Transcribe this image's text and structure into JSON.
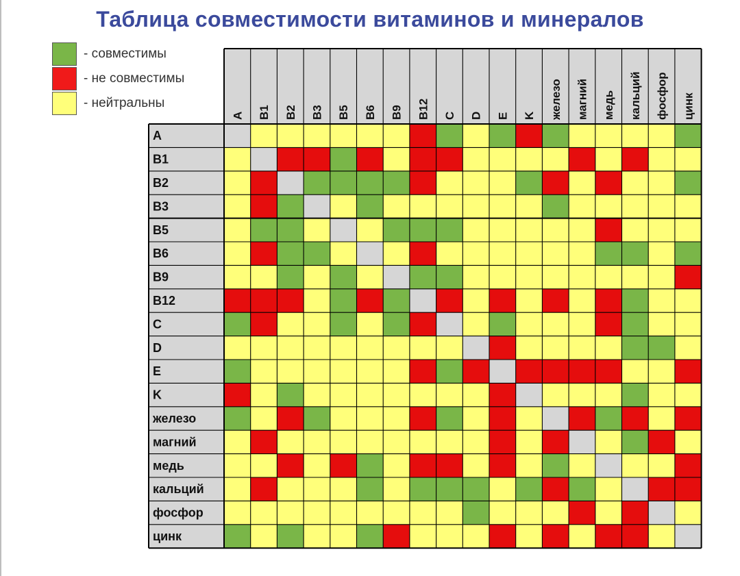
{
  "title": "Таблица совместимости витаминов и минералов",
  "legend": [
    {
      "label": "- совместимы",
      "color": "#7ab648"
    },
    {
      "label": "- не совместимы",
      "color": "#f01a1a"
    },
    {
      "label": "- нейтральны",
      "color": "#ffff7a"
    }
  ],
  "colors": {
    "G": "#7ab648",
    "R": "#e50d0d",
    "Y": "#ffff7a",
    "D": "#d6d6d6",
    "header_bg": "#d6d6d6",
    "line": "#000000"
  },
  "chart_data": {
    "type": "heatmap",
    "title": "Таблица совместимости витаминов и минералов",
    "columns": [
      "A",
      "B1",
      "B2",
      "B3",
      "B5",
      "B6",
      "B9",
      "B12",
      "C",
      "D",
      "E",
      "K",
      "железо",
      "магний",
      "медь",
      "кальций",
      "фосфор",
      "цинк"
    ],
    "rows": [
      "A",
      "B1",
      "B2",
      "B3",
      "B5",
      "B6",
      "B9",
      "B12",
      "C",
      "D",
      "E",
      "K",
      "железо",
      "магний",
      "медь",
      "кальций",
      "фосфор",
      "цинк"
    ],
    "values": [
      [
        "D",
        "Y",
        "Y",
        "Y",
        "Y",
        "Y",
        "Y",
        "R",
        "G",
        "Y",
        "G",
        "R",
        "G",
        "Y",
        "Y",
        "Y",
        "Y",
        "G"
      ],
      [
        "Y",
        "D",
        "R",
        "R",
        "G",
        "R",
        "Y",
        "R",
        "R",
        "Y",
        "Y",
        "Y",
        "Y",
        "R",
        "Y",
        "R",
        "Y",
        "Y"
      ],
      [
        "Y",
        "R",
        "D",
        "G",
        "G",
        "G",
        "G",
        "R",
        "Y",
        "Y",
        "Y",
        "G",
        "R",
        "Y",
        "R",
        "Y",
        "Y",
        "G"
      ],
      [
        "Y",
        "R",
        "G",
        "D",
        "Y",
        "G",
        "Y",
        "Y",
        "Y",
        "Y",
        "Y",
        "Y",
        "G",
        "Y",
        "Y",
        "Y",
        "Y",
        "Y"
      ],
      [
        "Y",
        "G",
        "G",
        "Y",
        "D",
        "Y",
        "G",
        "G",
        "G",
        "Y",
        "Y",
        "Y",
        "Y",
        "Y",
        "R",
        "Y",
        "Y",
        "Y"
      ],
      [
        "Y",
        "R",
        "G",
        "G",
        "Y",
        "D",
        "Y",
        "R",
        "Y",
        "Y",
        "Y",
        "Y",
        "Y",
        "Y",
        "G",
        "G",
        "Y",
        "G"
      ],
      [
        "Y",
        "Y",
        "G",
        "Y",
        "G",
        "Y",
        "D",
        "G",
        "G",
        "Y",
        "Y",
        "Y",
        "Y",
        "Y",
        "Y",
        "Y",
        "Y",
        "R"
      ],
      [
        "R",
        "R",
        "R",
        "Y",
        "G",
        "R",
        "G",
        "D",
        "R",
        "Y",
        "R",
        "Y",
        "R",
        "Y",
        "R",
        "G",
        "Y",
        "Y"
      ],
      [
        "G",
        "R",
        "Y",
        "Y",
        "G",
        "Y",
        "G",
        "R",
        "D",
        "Y",
        "G",
        "Y",
        "Y",
        "Y",
        "R",
        "G",
        "Y",
        "Y"
      ],
      [
        "Y",
        "Y",
        "Y",
        "Y",
        "Y",
        "Y",
        "Y",
        "Y",
        "Y",
        "D",
        "R",
        "Y",
        "Y",
        "Y",
        "Y",
        "G",
        "G",
        "Y"
      ],
      [
        "G",
        "Y",
        "Y",
        "Y",
        "Y",
        "Y",
        "Y",
        "R",
        "G",
        "R",
        "D",
        "R",
        "R",
        "R",
        "R",
        "Y",
        "Y",
        "R"
      ],
      [
        "R",
        "Y",
        "G",
        "Y",
        "Y",
        "Y",
        "Y",
        "Y",
        "Y",
        "Y",
        "R",
        "D",
        "Y",
        "Y",
        "Y",
        "G",
        "Y",
        "Y"
      ],
      [
        "G",
        "Y",
        "R",
        "G",
        "Y",
        "Y",
        "Y",
        "R",
        "G",
        "Y",
        "R",
        "Y",
        "D",
        "R",
        "G",
        "R",
        "Y",
        "R"
      ],
      [
        "Y",
        "R",
        "Y",
        "Y",
        "Y",
        "Y",
        "Y",
        "Y",
        "Y",
        "Y",
        "R",
        "Y",
        "R",
        "D",
        "Y",
        "G",
        "R",
        "Y"
      ],
      [
        "Y",
        "Y",
        "R",
        "Y",
        "R",
        "G",
        "Y",
        "R",
        "R",
        "Y",
        "R",
        "Y",
        "G",
        "Y",
        "D",
        "Y",
        "Y",
        "R"
      ],
      [
        "Y",
        "R",
        "Y",
        "Y",
        "Y",
        "G",
        "Y",
        "G",
        "G",
        "G",
        "Y",
        "G",
        "R",
        "G",
        "Y",
        "D",
        "R",
        "R"
      ],
      [
        "Y",
        "Y",
        "Y",
        "Y",
        "Y",
        "Y",
        "Y",
        "Y",
        "Y",
        "G",
        "Y",
        "Y",
        "Y",
        "R",
        "Y",
        "R",
        "D",
        "Y"
      ],
      [
        "G",
        "Y",
        "G",
        "Y",
        "Y",
        "G",
        "R",
        "Y",
        "Y",
        "Y",
        "R",
        "Y",
        "R",
        "Y",
        "R",
        "R",
        "Y",
        "D"
      ]
    ]
  }
}
